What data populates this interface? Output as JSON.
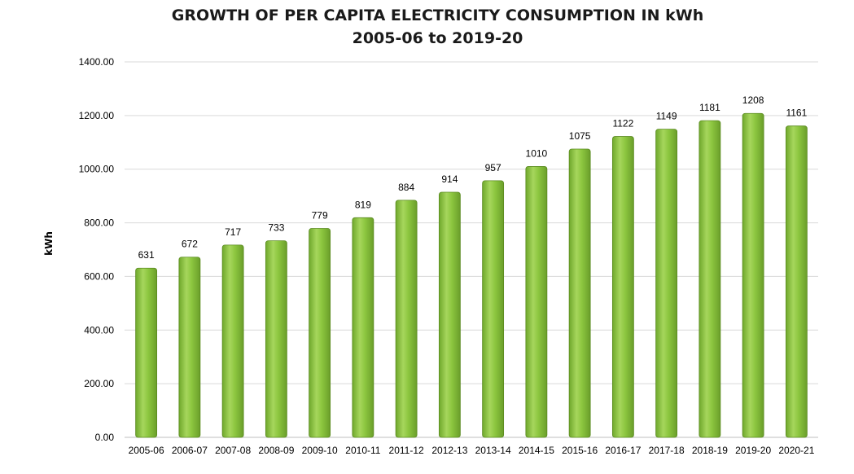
{
  "chart_data": {
    "type": "bar",
    "title": "GROWTH OF PER CAPITA ELECTRICITY CONSUMPTION IN  kWh",
    "subtitle": "2005-06 to 2019-20",
    "xlabel": "",
    "ylabel": "kWh",
    "ylim": [
      0,
      1400
    ],
    "yticks": [
      "0.00",
      "200.00",
      "400.00",
      "600.00",
      "800.00",
      "1000.00",
      "1200.00",
      "1400.00"
    ],
    "grid": true,
    "legend": "none",
    "categories": [
      "2005-06",
      "2006-07",
      "2007-08",
      "2008-09",
      "2009-10",
      "2010-11",
      "2011-12",
      "2012-13",
      "2013-14",
      "2014-15",
      "2015-16",
      "2016-17",
      "2017-18",
      "2018-19",
      "2019-20",
      "2020-21"
    ],
    "values": [
      631,
      672,
      717,
      733,
      779,
      819,
      884,
      914,
      957,
      1010,
      1075,
      1122,
      1149,
      1181,
      1208,
      1161
    ],
    "bar_color": "#8cc63f",
    "bar_edge_color": "#5a8a1f",
    "grid_color": "#d9d9d9"
  }
}
